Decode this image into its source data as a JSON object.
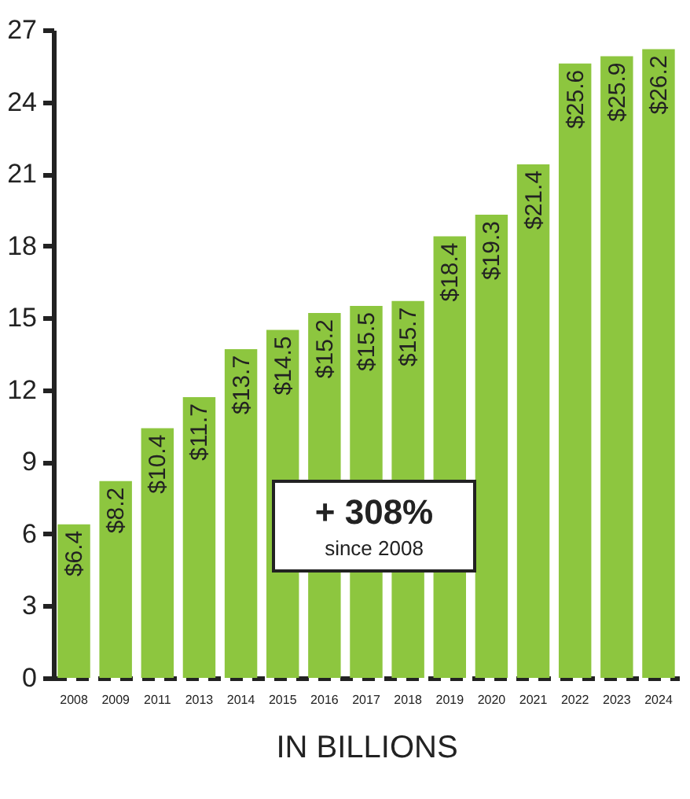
{
  "chart_data": {
    "type": "bar",
    "xlabel": "IN BILLIONS",
    "categories": [
      "2008",
      "2009",
      "2011",
      "2013",
      "2014",
      "2015",
      "2016",
      "2017",
      "2018",
      "2019",
      "2020",
      "2021",
      "2022",
      "2023",
      "2024"
    ],
    "values": [
      6.4,
      8.2,
      10.4,
      11.7,
      13.7,
      14.5,
      15.2,
      15.5,
      15.7,
      18.4,
      19.3,
      21.4,
      25.6,
      25.9,
      26.2
    ],
    "value_labels": [
      "$6.4",
      "$8.2",
      "$10.4",
      "$11.7",
      "$13.7",
      "$14.5",
      "$15.2",
      "$15.5",
      "$15.7",
      "$18.4",
      "$19.3",
      "$21.4",
      "$25.6",
      "$25.9",
      "$26.2"
    ],
    "color": "#8dc63f",
    "ylim": [
      0,
      27
    ],
    "yticks": [
      0,
      3,
      6,
      9,
      12,
      15,
      18,
      21,
      24,
      27
    ],
    "grid": false,
    "annotations": [
      "+ 308%",
      "since 2008"
    ]
  }
}
